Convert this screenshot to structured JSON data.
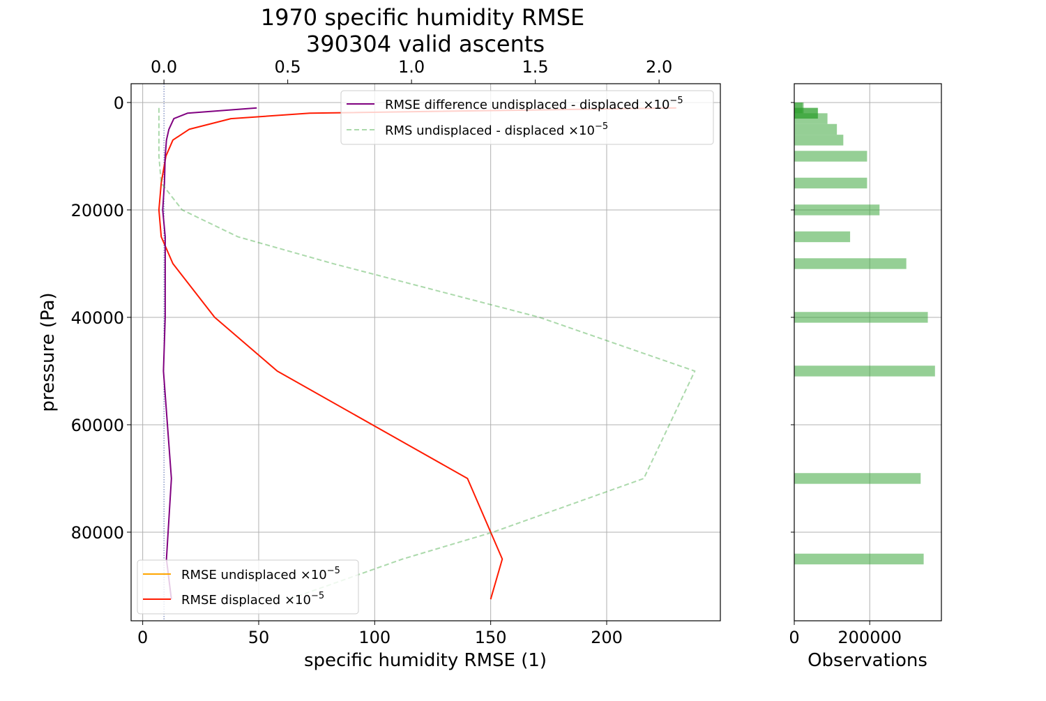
{
  "title_lines": [
    "1970 specific humidity RMSE",
    "390304 valid ascents"
  ],
  "colors": {
    "undisplaced": "#ffa500",
    "displaced": "#ff1a00",
    "difference": "#800080",
    "rms": "#2ca02c",
    "hist": "#2ca02c",
    "grid": "#b0b0b0"
  },
  "chart_data": [
    {
      "type": "line",
      "xlabel": "specific humidity RMSE (1)",
      "ylabel": "pressure (Pa)",
      "xlim": [
        -5,
        249
      ],
      "ylim": [
        96500,
        -3500
      ],
      "y_inverted": true,
      "x_ticks": [
        0,
        50,
        100,
        150,
        200
      ],
      "y_ticks": [
        0,
        20000,
        40000,
        60000,
        80000
      ],
      "top_axis": {
        "xlim": [
          -0.1327,
          2.2475
        ],
        "ticks": [
          0.0,
          0.5,
          1.0,
          1.5,
          2.0
        ],
        "tick_labels": [
          "0.0",
          "0.5",
          "1.0",
          "1.5",
          "2.0"
        ]
      },
      "grid": true,
      "series": [
        {
          "name": "RMSE undisplaced ×10",
          "name_sup": "−5",
          "axis": "bottom",
          "style": "solid",
          "points": []
        },
        {
          "name": "RMSE displaced ×10",
          "name_sup": "−5",
          "axis": "bottom",
          "style": "solid",
          "points": [
            [
              230,
              1000
            ],
            [
              72,
              2000
            ],
            [
              38,
              3000
            ],
            [
              20,
              5000
            ],
            [
              13,
              7000
            ],
            [
              10,
              10000
            ],
            [
              8,
              15000
            ],
            [
              7,
              20000
            ],
            [
              8,
              25000
            ],
            [
              13,
              30000
            ],
            [
              31,
              40000
            ],
            [
              58,
              50000
            ],
            [
              140,
              70000
            ],
            [
              155,
              85000
            ],
            [
              150,
              92500
            ]
          ]
        },
        {
          "name": "RMSE difference undisplaced - displaced ×10",
          "name_sup": "−5",
          "axis": "top",
          "style": "solid",
          "points": [
            [
              0.375,
              1000
            ],
            [
              0.095,
              2000
            ],
            [
              0.04,
              3000
            ],
            [
              0.02,
              5000
            ],
            [
              0.01,
              7000
            ],
            [
              0.005,
              10000
            ],
            [
              0.002,
              15000
            ],
            [
              -0.005,
              20000
            ],
            [
              0.005,
              25000
            ],
            [
              0.005,
              30000
            ],
            [
              0.005,
              40000
            ],
            [
              -0.002,
              50000
            ],
            [
              0.03,
              70000
            ],
            [
              0.01,
              85000
            ],
            [
              0.03,
              92500
            ]
          ]
        },
        {
          "name": "RMS undisplaced - displaced ×10",
          "name_sup": "−5",
          "axis": "bottom",
          "style": "dashed",
          "points": [
            [
              7,
              1000
            ],
            [
              7,
              2000
            ],
            [
              7,
              5000
            ],
            [
              7,
              10000
            ],
            [
              8,
              15000
            ],
            [
              17,
              20000
            ],
            [
              41,
              25000
            ],
            [
              82,
              30000
            ],
            [
              171,
              40000
            ],
            [
              238,
              50000
            ],
            [
              216,
              70000
            ],
            [
              151,
              80000
            ],
            [
              112,
              85000
            ],
            [
              63,
              92500
            ]
          ]
        }
      ],
      "legend_upper": "top-right",
      "legend_lower": "bottom-left"
    },
    {
      "type": "bar",
      "orientation": "horizontal",
      "xlabel": "Observations",
      "xlim": [
        0,
        390000
      ],
      "x_ticks": [
        0,
        200000
      ],
      "x_tick_labels": [
        "0",
        "200000"
      ],
      "ylim": [
        96500,
        -3500
      ],
      "grid": true,
      "bars": [
        {
          "y": 1000,
          "width": 2000,
          "value": 25000
        },
        {
          "y": 2000,
          "width": 2000,
          "value": 63000
        },
        {
          "y": 3000,
          "width": 2000,
          "value": 88000
        },
        {
          "y": 5000,
          "width": 2000,
          "value": 113000
        },
        {
          "y": 7000,
          "width": 2000,
          "value": 130000
        },
        {
          "y": 10000,
          "width": 2000,
          "value": 193000
        },
        {
          "y": 15000,
          "width": 2000,
          "value": 193000
        },
        {
          "y": 20000,
          "width": 2000,
          "value": 226000
        },
        {
          "y": 25000,
          "width": 2000,
          "value": 148000
        },
        {
          "y": 30000,
          "width": 2000,
          "value": 297000
        },
        {
          "y": 40000,
          "width": 2000,
          "value": 354000
        },
        {
          "y": 50000,
          "width": 2000,
          "value": 373000
        },
        {
          "y": 70000,
          "width": 2000,
          "value": 335000
        },
        {
          "y": 85000,
          "width": 2000,
          "value": 343000
        }
      ],
      "overlay_bars": [
        {
          "y": 1000,
          "width": 2000,
          "value": 22000
        },
        {
          "y": 2000,
          "width": 2000,
          "value": 62000
        }
      ]
    }
  ]
}
